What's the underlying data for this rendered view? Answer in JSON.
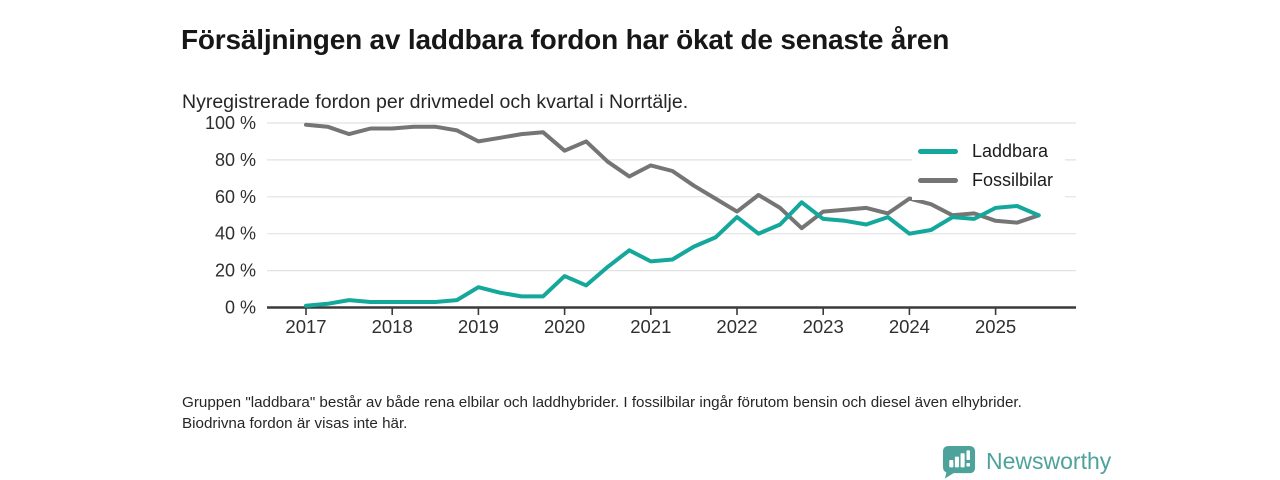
{
  "header": {
    "title": "Försäljningen av laddbara fordon har ökat de senaste åren",
    "subtitle": "Nyregistrerade fordon per drivmedel och kvartal i Norrtälje."
  },
  "chart_data": {
    "type": "line",
    "title": "Försäljningen av laddbara fordon har ökat de senaste åren",
    "subtitle": "Nyregistrerade fordon per drivmedel och kvartal i Norrtälje.",
    "xlabel": "",
    "ylabel": "",
    "x_unit": "quarter",
    "quarters": [
      "2017 Q1",
      "2017 Q2",
      "2017 Q3",
      "2017 Q4",
      "2018 Q1",
      "2018 Q2",
      "2018 Q3",
      "2018 Q4",
      "2019 Q1",
      "2019 Q2",
      "2019 Q3",
      "2019 Q4",
      "2020 Q1",
      "2020 Q2",
      "2020 Q3",
      "2020 Q4",
      "2021 Q1",
      "2021 Q2",
      "2021 Q3",
      "2021 Q4",
      "2022 Q1",
      "2022 Q2",
      "2022 Q3",
      "2022 Q4",
      "2023 Q1",
      "2023 Q2",
      "2023 Q3",
      "2023 Q4",
      "2024 Q1",
      "2024 Q2",
      "2024 Q3",
      "2024 Q4",
      "2025 Q1",
      "2025 Q2",
      "2025 Q3"
    ],
    "series": [
      {
        "name": "Laddbara",
        "color": "#14a79b",
        "values": [
          1,
          2,
          4,
          3,
          3,
          3,
          3,
          4,
          11,
          8,
          6,
          6,
          17,
          12,
          22,
          31,
          25,
          26,
          33,
          38,
          49,
          40,
          45,
          57,
          48,
          47,
          45,
          49,
          40,
          42,
          49,
          48,
          54,
          55,
          50
        ]
      },
      {
        "name": "Fossilbilar",
        "color": "#757575",
        "values": [
          99,
          98,
          94,
          97,
          97,
          98,
          98,
          96,
          90,
          92,
          94,
          95,
          85,
          90,
          79,
          71,
          77,
          74,
          66,
          59,
          52,
          61,
          54,
          43,
          52,
          53,
          54,
          51,
          59,
          56,
          50,
          51,
          47,
          46,
          50
        ]
      }
    ],
    "y_ticks": [
      "100 %",
      "80 %",
      "60 %",
      "40 %",
      "20 %",
      "0 %"
    ],
    "x_ticks": [
      "2017",
      "2018",
      "2019",
      "2020",
      "2021",
      "2022",
      "2023",
      "2024",
      "2025"
    ],
    "ylim": [
      0,
      100
    ],
    "grid": "horizontal",
    "legend_position": "top-right"
  },
  "footnote": {
    "text": "Gruppen \"laddbara\" består av både rena elbilar och laddhybrider. I fossilbilar ingår förutom bensin och diesel även elhybrider. Biodrivna fordon är visas inte här."
  },
  "logo": {
    "text": "Newsworthy",
    "color": "#4da39c"
  }
}
